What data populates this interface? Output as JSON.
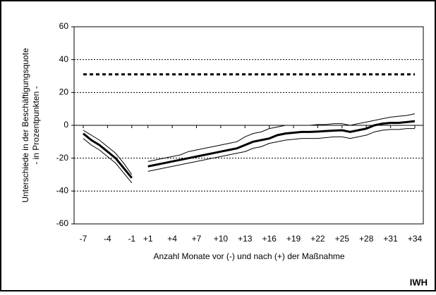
{
  "chart_data": {
    "type": "line",
    "ylabel": [
      "Unterschiede in der Beschäftigungsquote",
      "- in Prozentpunkten -"
    ],
    "xlabel": "Anzahl Monate vor (-) und nach (+) der Maßnahme",
    "source": "IWH",
    "categories": [
      "-7",
      null,
      null,
      "-4",
      null,
      null,
      "-1",
      null,
      "+1",
      null,
      null,
      "+4",
      null,
      null,
      "+7",
      null,
      null,
      "+10",
      null,
      null,
      "+13",
      null,
      null,
      "+16",
      null,
      null,
      "+19",
      null,
      null,
      "+22",
      null,
      null,
      "+25",
      null,
      null,
      "+28",
      null,
      null,
      "+31",
      null,
      null,
      "+34"
    ],
    "series": [
      {
        "color": "#000000",
        "style": "dashed",
        "values": [
          31,
          31,
          31,
          31,
          31,
          31,
          31,
          31,
          31,
          31,
          31,
          31,
          31,
          31,
          31,
          31,
          31,
          31,
          31,
          31,
          31,
          31,
          31,
          31,
          31,
          31,
          31,
          31,
          31,
          31,
          31,
          31,
          31,
          31,
          31,
          31,
          31,
          31,
          31,
          31,
          31,
          31
        ]
      },
      {
        "color": "#000000",
        "style": "thin",
        "values": [
          -3,
          -6,
          -9,
          -13,
          -17,
          -23,
          -30,
          null,
          -22,
          -21,
          -20,
          -19,
          -18,
          -16,
          -15,
          -14,
          -13,
          -12,
          -11,
          -10,
          -7,
          -5,
          -4,
          -2,
          -1,
          0,
          0,
          0,
          0,
          0.5,
          0.5,
          1,
          1,
          0,
          1,
          2,
          3,
          4,
          5,
          5.5,
          6,
          7
        ]
      },
      {
        "color": "#000000",
        "style": "bold",
        "values": [
          -5,
          -9,
          -12,
          -16,
          -20,
          -26,
          -32,
          null,
          -25,
          -24,
          -23,
          -22,
          -21,
          -20,
          -19,
          -18,
          -17,
          -16,
          -15,
          -14,
          -12,
          -10,
          -9,
          -8,
          -6,
          -5,
          -4.5,
          -4,
          -4,
          -3.8,
          -3.5,
          -3.2,
          -3,
          -4,
          -3,
          -2,
          0,
          1,
          1.5,
          1.5,
          2,
          2.5
        ]
      },
      {
        "color": "#000000",
        "style": "thin",
        "values": [
          -8,
          -12,
          -15,
          -19,
          -23,
          -29,
          -35,
          null,
          -28,
          -27,
          -26,
          -25,
          -24,
          -23,
          -22,
          -21,
          -20,
          -19,
          -18,
          -17,
          -16,
          -14,
          -13,
          -11,
          -10,
          -9,
          -8.5,
          -8,
          -8,
          -8,
          -7.5,
          -7,
          -7,
          -8,
          -7,
          -6,
          -4,
          -3,
          -2.5,
          -2.5,
          -2,
          -2
        ]
      }
    ],
    "ylim": [
      -60,
      60
    ],
    "yticks": [
      -60,
      -40,
      -20,
      0,
      20,
      40,
      60
    ],
    "grid": true
  }
}
